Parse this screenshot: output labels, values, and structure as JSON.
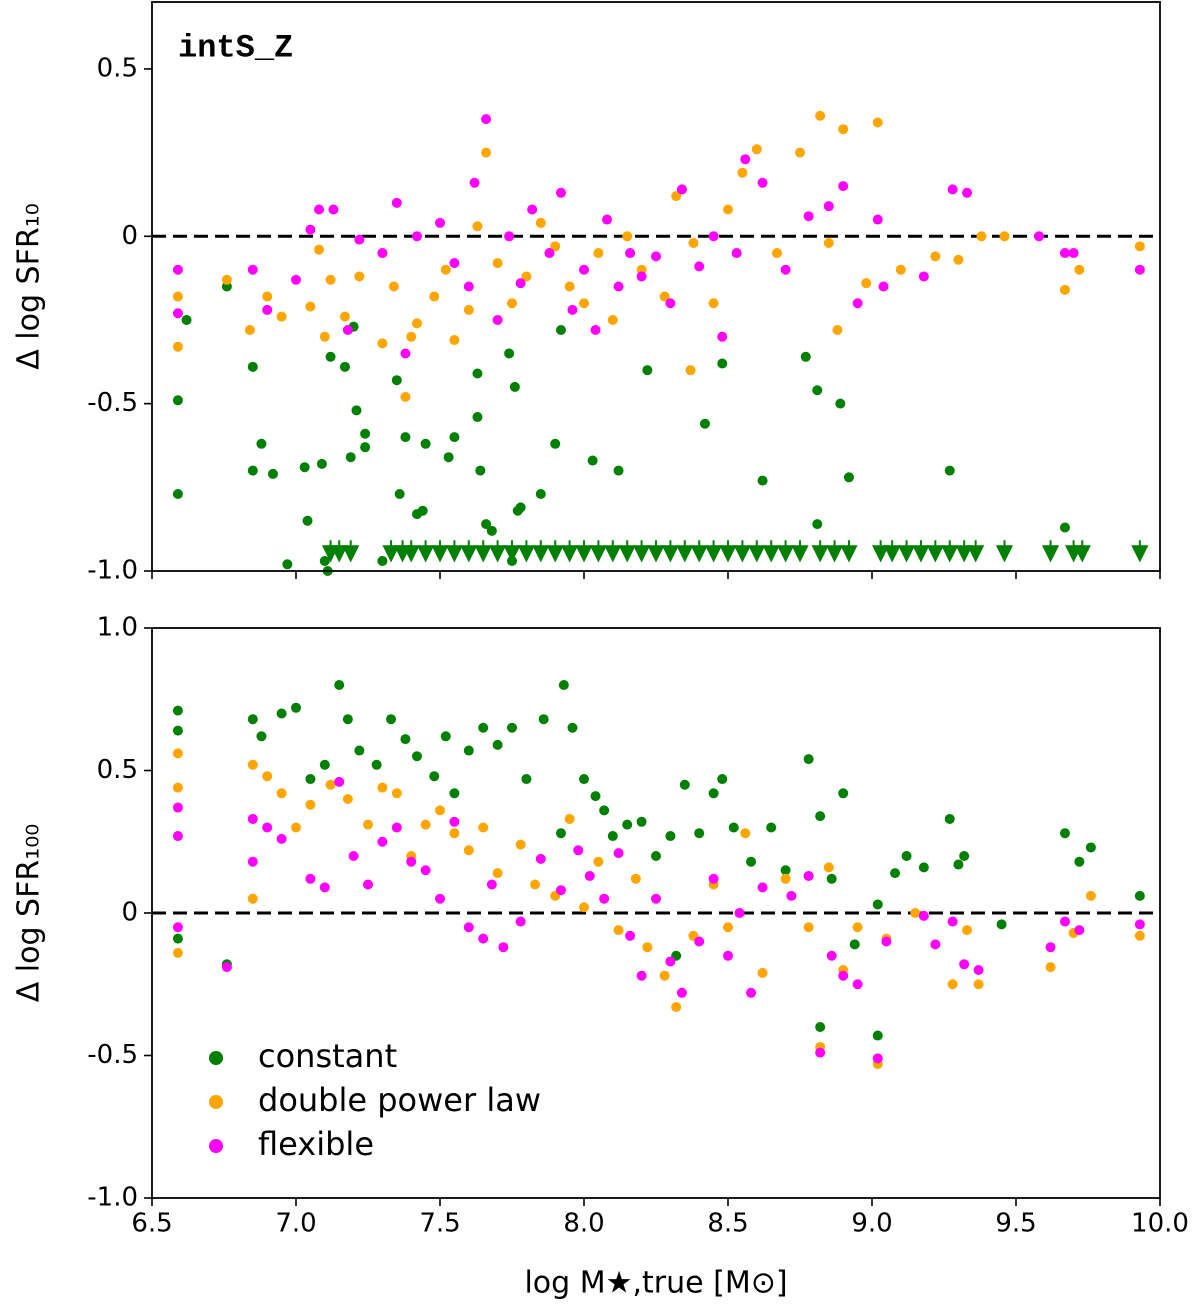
{
  "chart_data": [
    {
      "type": "scatter",
      "annotation": "intS_Z",
      "ylabel": "Δ log SFR₁₀",
      "xlim": [
        6.5,
        10.0
      ],
      "ylim": [
        -1.0,
        0.7
      ],
      "xticks": [
        6.5,
        {
          "value": 7,
          "label": "7.0"
        },
        7.5,
        {
          "value": 8,
          "label": "8.0"
        },
        8.5,
        {
          "value": 9,
          "label": "9.0"
        },
        9.5,
        {
          "value": 10,
          "label": "10.0"
        }
      ],
      "yticks": [
        {
          "value": -1,
          "label": "-1.0"
        },
        -0.5,
        0,
        0.5
      ],
      "hlines": [
        0
      ],
      "series": [
        {
          "name": "constant",
          "color": "#008000",
          "x": [
            6.59,
            6.59,
            6.76,
            6.85,
            6.88,
            6.85,
            6.92,
            6.97,
            7.03,
            7.04,
            7.09,
            7.1,
            7.11,
            7.17,
            7.19,
            7.2,
            7.21,
            7.24,
            7.24,
            7.3,
            7.35,
            7.36,
            7.38,
            7.42,
            7.44,
            7.45,
            7.53,
            7.55,
            7.63,
            7.64,
            7.66,
            7.68,
            7.74,
            7.75,
            7.76,
            7.77,
            7.78,
            7.85,
            7.9,
            7.92,
            8.03,
            8.12,
            8.22,
            8.42,
            8.48,
            8.62,
            8.77,
            8.81,
            8.81,
            8.89,
            8.92,
            9.27,
            9.67,
            6.62,
            7.12,
            7.63
          ],
          "values": [
            -0.49,
            -0.77,
            -0.15,
            -0.39,
            -0.62,
            -0.7,
            -0.71,
            -0.98,
            -0.69,
            -0.85,
            -0.68,
            -0.97,
            -1.0,
            -0.39,
            -0.66,
            -0.27,
            -0.52,
            -0.59,
            -0.63,
            -0.97,
            -0.43,
            -0.77,
            -0.6,
            -0.83,
            -0.82,
            -0.62,
            -0.66,
            -0.6,
            -0.41,
            -0.7,
            -0.86,
            -0.88,
            -0.35,
            -0.97,
            -0.45,
            -0.82,
            -0.81,
            -0.77,
            -0.62,
            -0.28,
            -0.67,
            -0.7,
            -0.4,
            -0.56,
            -0.38,
            -0.73,
            -0.36,
            -0.46,
            -0.86,
            -0.5,
            -0.72,
            -0.7,
            -0.87,
            -0.25,
            -0.36,
            -0.54
          ]
        },
        {
          "name": "double power law",
          "color": "#ffa500",
          "x": [
            6.59,
            6.59,
            6.76,
            6.84,
            6.9,
            6.95,
            7.05,
            7.08,
            7.12,
            7.17,
            7.22,
            7.3,
            7.34,
            7.38,
            7.42,
            7.48,
            7.52,
            7.55,
            7.6,
            7.63,
            7.66,
            7.7,
            7.75,
            7.8,
            7.85,
            7.9,
            7.95,
            8.0,
            8.05,
            8.1,
            8.15,
            8.2,
            8.28,
            8.32,
            8.38,
            8.45,
            8.5,
            8.55,
            8.6,
            8.67,
            8.75,
            8.82,
            8.85,
            8.9,
            8.98,
            9.02,
            9.1,
            9.22,
            9.3,
            9.38,
            9.46,
            9.67,
            9.72,
            9.93,
            8.88,
            8.37,
            7.4,
            7.1
          ],
          "values": [
            -0.18,
            -0.33,
            -0.13,
            -0.28,
            -0.18,
            -0.24,
            -0.21,
            -0.04,
            -0.13,
            -0.24,
            -0.12,
            -0.32,
            -0.15,
            -0.48,
            -0.26,
            -0.18,
            -0.1,
            -0.31,
            -0.22,
            0.03,
            0.25,
            -0.08,
            -0.2,
            -0.12,
            0.04,
            -0.03,
            -0.15,
            -0.2,
            -0.05,
            -0.25,
            0.0,
            -0.1,
            -0.18,
            0.12,
            -0.02,
            -0.2,
            0.08,
            0.19,
            0.26,
            -0.05,
            0.25,
            0.36,
            -0.02,
            0.32,
            -0.14,
            0.34,
            -0.1,
            -0.06,
            -0.07,
            0.0,
            0.0,
            -0.16,
            -0.1,
            -0.03,
            -0.28,
            -0.4,
            -0.3,
            -0.3
          ]
        },
        {
          "name": "flexible",
          "color": "#ff00ff",
          "x": [
            6.59,
            6.59,
            6.85,
            6.9,
            7.0,
            7.05,
            7.08,
            7.13,
            7.18,
            7.22,
            7.3,
            7.35,
            7.38,
            7.42,
            7.5,
            7.55,
            7.6,
            7.62,
            7.66,
            7.7,
            7.74,
            7.78,
            7.82,
            7.88,
            7.92,
            7.96,
            8.0,
            8.04,
            8.08,
            8.12,
            8.16,
            8.2,
            8.25,
            8.3,
            8.34,
            8.4,
            8.45,
            8.48,
            8.53,
            8.56,
            8.62,
            8.7,
            8.78,
            8.85,
            8.9,
            8.95,
            9.02,
            9.04,
            9.18,
            9.28,
            9.33,
            9.58,
            9.67,
            9.7,
            9.93
          ],
          "values": [
            -0.1,
            -0.23,
            -0.1,
            -0.22,
            -0.13,
            0.02,
            0.08,
            0.08,
            -0.28,
            -0.01,
            -0.05,
            0.1,
            -0.35,
            0.0,
            0.04,
            -0.08,
            -0.15,
            0.16,
            0.35,
            -0.25,
            0.0,
            -0.14,
            0.08,
            -0.05,
            0.13,
            -0.22,
            -0.1,
            -0.28,
            0.05,
            -0.15,
            -0.05,
            -0.12,
            -0.06,
            -0.2,
            0.14,
            -0.09,
            0.0,
            -0.3,
            -0.05,
            0.23,
            0.16,
            -0.1,
            0.06,
            0.09,
            0.15,
            -0.2,
            0.05,
            -0.15,
            -0.12,
            0.14,
            0.13,
            0.0,
            -0.05,
            -0.05,
            -0.1
          ]
        }
      ],
      "upper_limits": {
        "color": "#008000",
        "x": [
          7.12,
          7.15,
          7.19,
          7.33,
          7.37,
          7.4,
          7.45,
          7.5,
          7.55,
          7.6,
          7.65,
          7.7,
          7.75,
          7.8,
          7.85,
          7.9,
          7.95,
          8.0,
          8.05,
          8.1,
          8.15,
          8.2,
          8.25,
          8.3,
          8.35,
          8.4,
          8.45,
          8.5,
          8.55,
          8.6,
          8.65,
          8.7,
          8.75,
          8.82,
          8.87,
          8.92,
          9.03,
          9.07,
          9.12,
          9.17,
          9.22,
          9.27,
          9.32,
          9.36,
          9.46,
          9.62,
          9.7,
          9.73,
          9.93
        ],
        "values": [
          -0.95,
          -0.95,
          -0.95,
          -0.95,
          -0.95,
          -0.95,
          -0.95,
          -0.95,
          -0.95,
          -0.95,
          -0.95,
          -0.95,
          -0.95,
          -0.95,
          -0.95,
          -0.95,
          -0.95,
          -0.95,
          -0.95,
          -0.95,
          -0.95,
          -0.95,
          -0.95,
          -0.95,
          -0.95,
          -0.95,
          -0.95,
          -0.95,
          -0.95,
          -0.95,
          -0.95,
          -0.95,
          -0.95,
          -0.95,
          -0.95,
          -0.95,
          -0.95,
          -0.95,
          -0.95,
          -0.95,
          -0.95,
          -0.95,
          -0.95,
          -0.95,
          -0.95,
          -0.95,
          -0.95,
          -0.95,
          -0.95
        ]
      }
    },
    {
      "type": "scatter",
      "ylabel": "Δ log SFR₁₀₀",
      "xlabel": "log M★,true [M⊙]",
      "xlim": [
        6.5,
        10.0
      ],
      "ylim": [
        -1.0,
        1.0
      ],
      "xticks": [
        6.5,
        {
          "value": 7,
          "label": "7.0"
        },
        7.5,
        {
          "value": 8,
          "label": "8.0"
        },
        8.5,
        {
          "value": 9,
          "label": "9.0"
        },
        9.5,
        {
          "value": 10,
          "label": "10.0"
        }
      ],
      "yticks": [
        {
          "value": -1,
          "label": "-1.0"
        },
        -0.5,
        0,
        0.5,
        {
          "value": 1,
          "label": "1.0"
        }
      ],
      "hlines": [
        0
      ],
      "legend": "lower left",
      "series": [
        {
          "name": "constant",
          "color": "#008000",
          "x": [
            6.59,
            6.59,
            6.59,
            6.76,
            6.85,
            6.88,
            6.95,
            7.0,
            7.05,
            7.1,
            7.15,
            7.18,
            7.22,
            7.28,
            7.33,
            7.38,
            7.42,
            7.48,
            7.52,
            7.55,
            7.6,
            7.65,
            7.7,
            7.75,
            7.8,
            7.86,
            7.93,
            7.96,
            8.0,
            8.04,
            8.07,
            8.1,
            8.15,
            8.2,
            8.25,
            8.3,
            8.35,
            8.4,
            8.45,
            8.48,
            8.52,
            8.58,
            8.65,
            8.7,
            8.78,
            8.82,
            8.86,
            8.9,
            8.94,
            9.02,
            9.08,
            9.12,
            9.18,
            9.27,
            9.3,
            9.32,
            9.45,
            9.67,
            9.72,
            9.76,
            9.93,
            8.82,
            9.02,
            8.32,
            7.92
          ],
          "values": [
            0.71,
            0.64,
            -0.09,
            -0.18,
            0.68,
            0.62,
            0.7,
            0.72,
            0.47,
            0.52,
            0.8,
            0.68,
            0.57,
            0.52,
            0.68,
            0.61,
            0.55,
            0.48,
            0.62,
            0.42,
            0.57,
            0.65,
            0.59,
            0.65,
            0.47,
            0.68,
            0.8,
            0.65,
            0.47,
            0.41,
            0.36,
            0.27,
            0.31,
            0.32,
            0.2,
            0.27,
            0.45,
            0.28,
            0.42,
            0.47,
            0.3,
            0.18,
            0.3,
            0.15,
            0.54,
            0.34,
            0.12,
            0.42,
            -0.11,
            0.03,
            0.14,
            0.2,
            0.16,
            0.33,
            0.17,
            0.2,
            -0.04,
            0.28,
            0.18,
            0.23,
            0.06,
            -0.4,
            -0.43,
            -0.15,
            0.28
          ]
        },
        {
          "name": "double power law",
          "color": "#ffa500",
          "x": [
            6.59,
            6.59,
            6.59,
            6.85,
            6.85,
            6.9,
            6.95,
            7.0,
            7.05,
            7.12,
            7.18,
            7.25,
            7.3,
            7.35,
            7.4,
            7.45,
            7.5,
            7.55,
            7.6,
            7.65,
            7.7,
            7.78,
            7.83,
            7.9,
            7.95,
            8.0,
            8.05,
            8.12,
            8.18,
            8.22,
            8.28,
            8.32,
            8.38,
            8.45,
            8.5,
            8.56,
            8.62,
            8.7,
            8.78,
            8.82,
            8.85,
            8.9,
            8.95,
            9.02,
            9.05,
            9.15,
            9.28,
            9.33,
            9.37,
            9.62,
            9.7,
            9.76,
            9.93
          ],
          "values": [
            0.56,
            0.44,
            -0.14,
            0.52,
            0.05,
            0.48,
            0.42,
            0.3,
            0.38,
            0.45,
            0.4,
            0.31,
            0.44,
            0.42,
            0.2,
            0.31,
            0.36,
            0.28,
            0.22,
            0.3,
            0.14,
            0.24,
            0.1,
            0.06,
            0.33,
            0.02,
            0.18,
            -0.06,
            0.12,
            -0.12,
            -0.22,
            -0.33,
            -0.08,
            0.1,
            -0.05,
            0.28,
            -0.21,
            0.12,
            -0.05,
            -0.47,
            0.16,
            -0.2,
            -0.05,
            -0.53,
            -0.09,
            0.0,
            -0.25,
            -0.06,
            -0.25,
            -0.19,
            -0.07,
            0.06,
            -0.08
          ]
        },
        {
          "name": "flexible",
          "color": "#ff00ff",
          "x": [
            6.59,
            6.59,
            6.59,
            6.76,
            6.85,
            6.85,
            6.9,
            6.95,
            7.05,
            7.1,
            7.15,
            7.2,
            7.25,
            7.3,
            7.35,
            7.4,
            7.45,
            7.5,
            7.55,
            7.6,
            7.65,
            7.68,
            7.72,
            7.78,
            7.85,
            7.92,
            7.98,
            8.02,
            8.07,
            8.12,
            8.16,
            8.2,
            8.25,
            8.3,
            8.34,
            8.4,
            8.45,
            8.5,
            8.54,
            8.58,
            8.62,
            8.72,
            8.78,
            8.82,
            8.86,
            8.9,
            8.95,
            9.02,
            9.05,
            9.18,
            9.22,
            9.28,
            9.32,
            9.37,
            9.62,
            9.67,
            9.72,
            9.93
          ],
          "values": [
            0.37,
            0.27,
            -0.05,
            -0.19,
            0.33,
            0.18,
            0.3,
            0.26,
            0.12,
            0.09,
            0.46,
            0.2,
            0.1,
            0.25,
            0.3,
            0.18,
            0.15,
            0.05,
            0.32,
            -0.05,
            -0.09,
            0.1,
            -0.12,
            -0.03,
            0.19,
            0.08,
            0.22,
            0.13,
            0.05,
            0.21,
            -0.08,
            -0.22,
            0.05,
            -0.17,
            -0.28,
            -0.1,
            0.12,
            -0.15,
            0.0,
            -0.28,
            0.09,
            0.06,
            0.13,
            -0.49,
            -0.15,
            -0.22,
            -0.25,
            -0.51,
            -0.1,
            -0.01,
            -0.11,
            -0.03,
            -0.18,
            -0.2,
            -0.12,
            -0.03,
            -0.06,
            -0.04
          ]
        }
      ]
    }
  ]
}
